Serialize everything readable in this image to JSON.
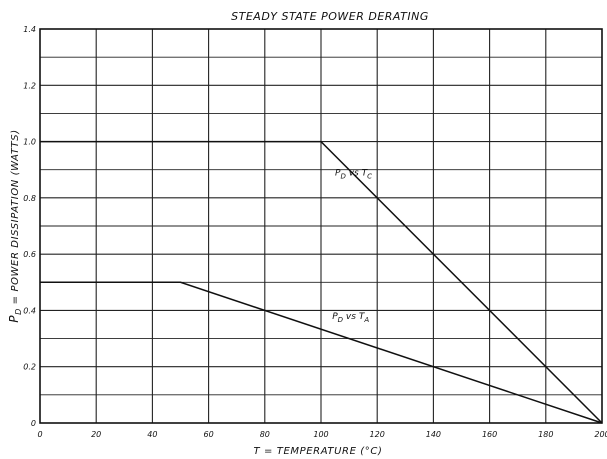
{
  "chart_data": {
    "type": "line",
    "title": "STEADY STATE POWER DERATING",
    "xlabel": "T = TEMPERATURE (°C)",
    "ylabel": {
      "symbol": "P",
      "subscript": "D",
      "text": " = POWER DISSIPATION (WATTS)"
    },
    "xlim": [
      0,
      200
    ],
    "ylim": [
      0,
      1.4
    ],
    "x_ticks": [
      0,
      20,
      40,
      60,
      80,
      100,
      120,
      140,
      160,
      180,
      200
    ],
    "y_ticks": [
      0,
      0.2,
      0.4,
      0.6,
      0.8,
      1.0,
      1.2,
      1.4
    ],
    "x_tick_labels": [
      "0",
      "20",
      "40",
      "60",
      "80",
      "100",
      "120",
      "140",
      "160",
      "180",
      "200"
    ],
    "y_tick_labels": [
      "0",
      "0.2",
      "0.4",
      "0.6",
      "0.8",
      "1.0",
      "1.2",
      "1.4"
    ],
    "grid": true,
    "series": [
      {
        "name": "PD vs TC",
        "label": {
          "p": "P",
          "p_sub": "D",
          "vs": " vs ",
          "t": "T",
          "t_sub": "C"
        },
        "label_at": [
          105,
          0.88
        ],
        "x": [
          0,
          100,
          200
        ],
        "y": [
          1.0,
          1.0,
          0.0
        ]
      },
      {
        "name": "PD vs TA",
        "label": {
          "p": "P",
          "p_sub": "D",
          "vs": " vs ",
          "t": "T",
          "t_sub": "A"
        },
        "label_at": [
          104,
          0.37
        ],
        "x": [
          0,
          50,
          200
        ],
        "y": [
          0.5,
          0.5,
          0.0
        ]
      }
    ]
  }
}
